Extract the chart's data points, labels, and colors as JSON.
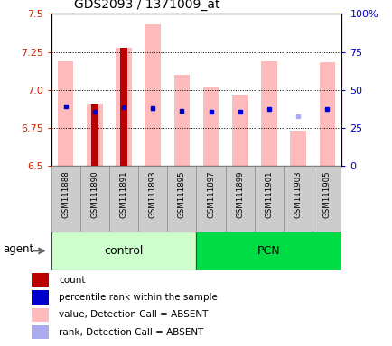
{
  "title": "GDS2093 / 1371009_at",
  "samples": [
    "GSM111888",
    "GSM111890",
    "GSM111891",
    "GSM111893",
    "GSM111895",
    "GSM111897",
    "GSM111899",
    "GSM111901",
    "GSM111903",
    "GSM111905"
  ],
  "groups": {
    "control": [
      0,
      1,
      2,
      3,
      4
    ],
    "PCN": [
      5,
      6,
      7,
      8,
      9
    ]
  },
  "ylim_left": [
    6.5,
    7.5
  ],
  "ylim_right": [
    0,
    100
  ],
  "yticks_left": [
    6.5,
    6.75,
    7.0,
    7.25,
    7.5
  ],
  "yticks_right": [
    0,
    25,
    50,
    75,
    100
  ],
  "ytick_labels_right": [
    "0",
    "25",
    "50",
    "75",
    "100%"
  ],
  "bar_bottom": 6.5,
  "pink_bars": {
    "tops": [
      7.19,
      6.91,
      7.28,
      7.43,
      7.1,
      7.02,
      6.97,
      7.19,
      6.73,
      7.18
    ],
    "color": "#ffbbbb"
  },
  "red_bars": {
    "tops": [
      null,
      6.91,
      7.28,
      null,
      null,
      null,
      null,
      null,
      null,
      null
    ],
    "color": "#bb0000"
  },
  "blue_squares": {
    "values": [
      6.89,
      6.855,
      6.885,
      6.88,
      6.86,
      6.855,
      6.855,
      6.875,
      null,
      6.875
    ],
    "color": "#0000cc"
  },
  "light_blue_squares": {
    "values": [
      6.89,
      null,
      null,
      6.875,
      6.855,
      6.855,
      6.855,
      6.875,
      6.83,
      6.875
    ],
    "color": "#aaaaee"
  },
  "bar_width": 0.55,
  "red_bar_width": 0.25,
  "left_tick_color": "#cc2200",
  "right_tick_color": "#0000cc",
  "legend_items": [
    {
      "label": "count",
      "color": "#bb0000"
    },
    {
      "label": "percentile rank within the sample",
      "color": "#0000cc"
    },
    {
      "label": "value, Detection Call = ABSENT",
      "color": "#ffbbbb"
    },
    {
      "label": "rank, Detection Call = ABSENT",
      "color": "#aaaaee"
    }
  ]
}
